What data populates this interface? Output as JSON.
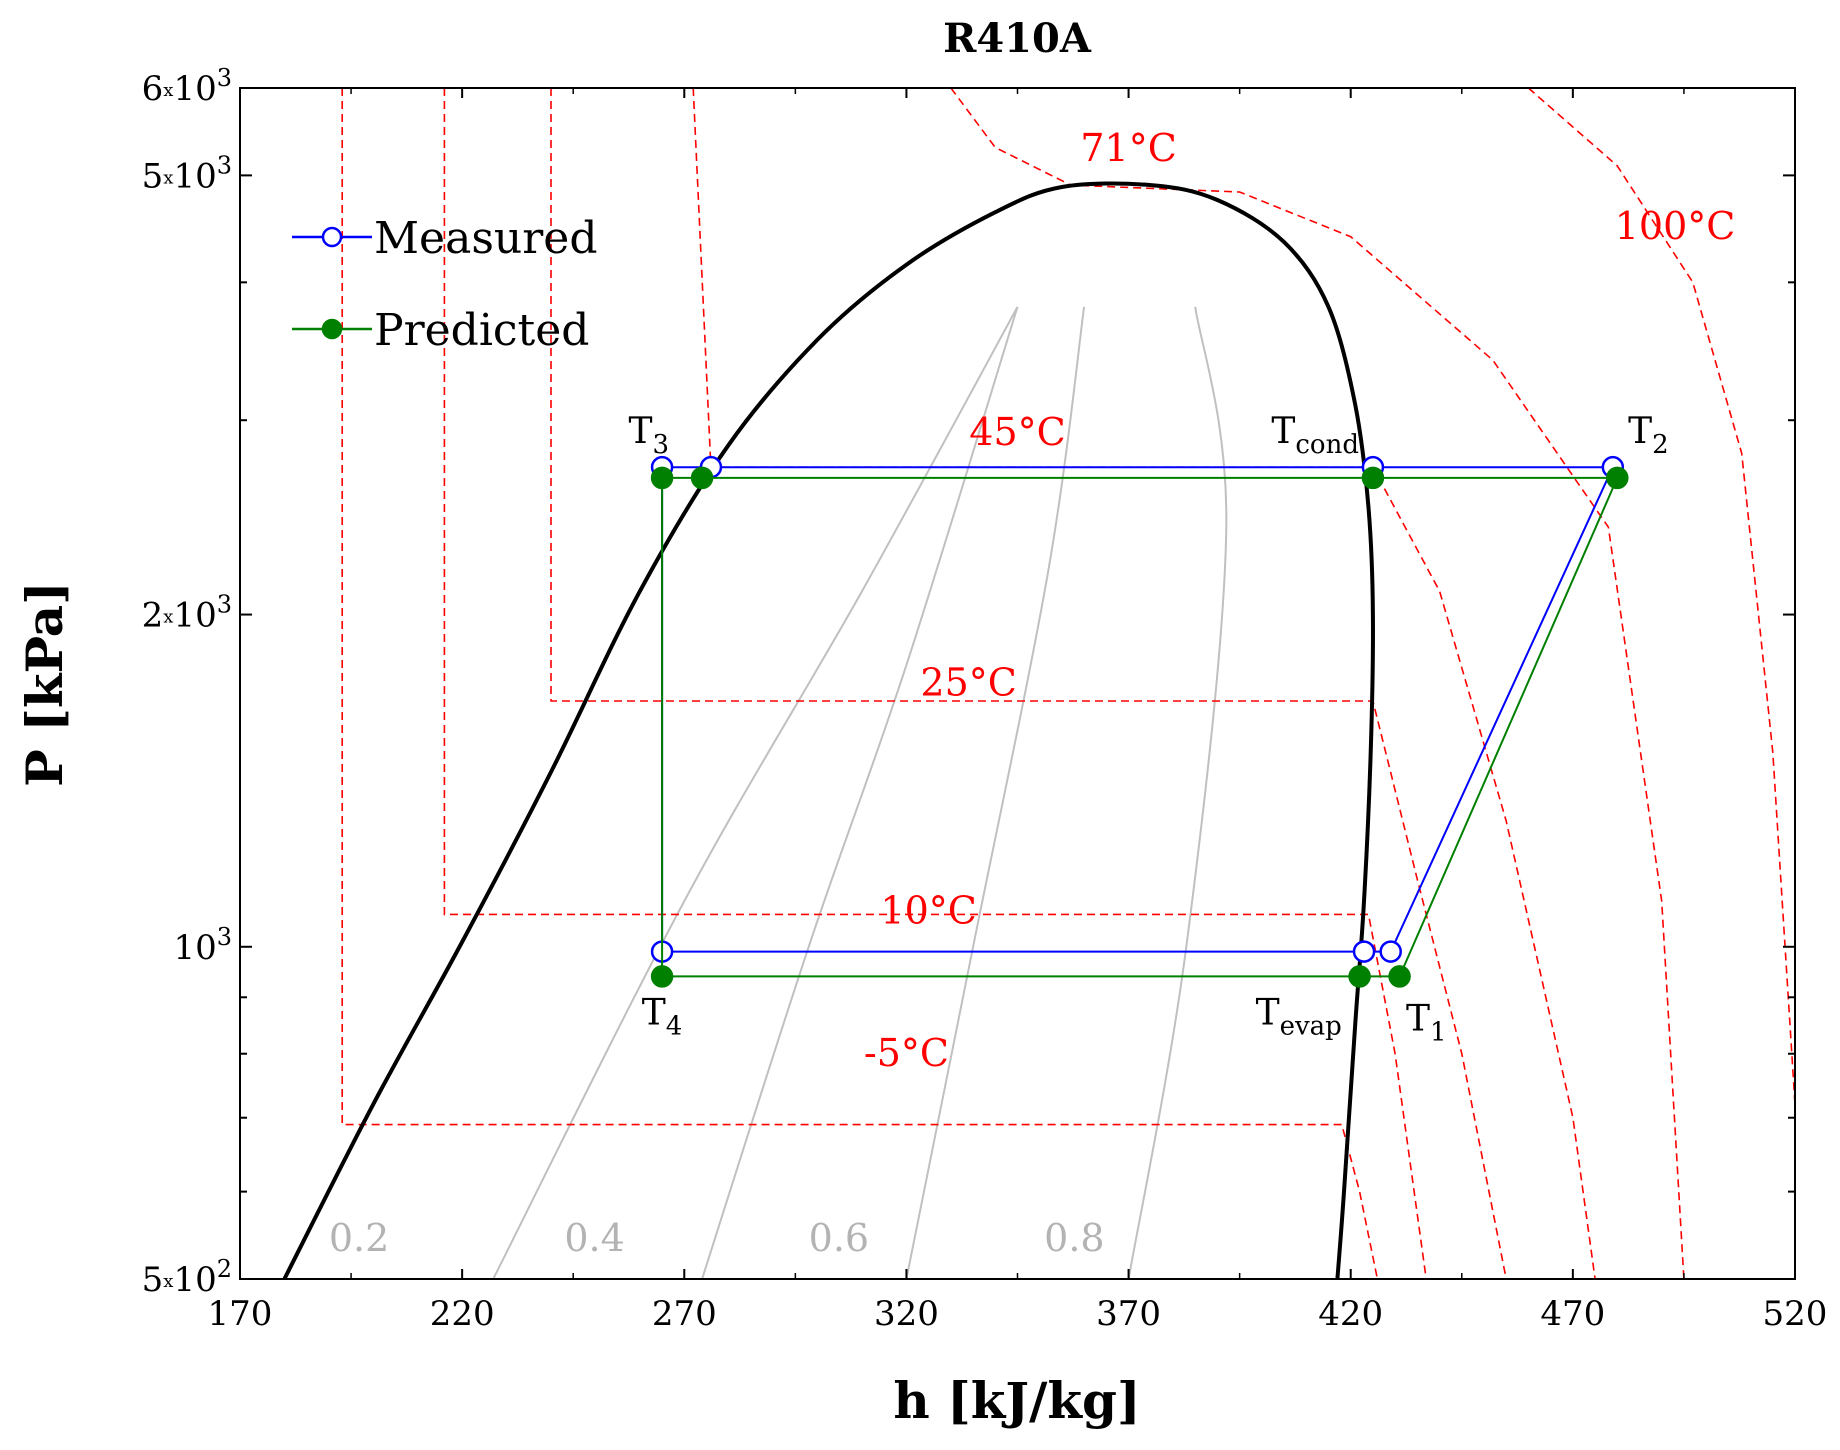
{
  "chart_data": {
    "type": "line",
    "title": "R410A",
    "xlabel": "h [kJ/kg]",
    "ylabel": "P [kPa]",
    "xlim": [
      170,
      520
    ],
    "ylim": [
      500,
      6000
    ],
    "yscale": "log",
    "xticks": [
      170,
      220,
      270,
      320,
      370,
      420,
      470,
      520
    ],
    "yticks": [
      {
        "value": 500,
        "mantissa": "5",
        "base": "10",
        "exp": "2"
      },
      {
        "value": 1000,
        "mantissa": "",
        "base": "10",
        "exp": "3"
      },
      {
        "value": 2000,
        "mantissa": "2",
        "base": "10",
        "exp": "3"
      },
      {
        "value": 5000,
        "mantissa": "5",
        "base": "10",
        "exp": "3"
      },
      {
        "value": 6000,
        "mantissa": "6",
        "base": "10",
        "exp": "3"
      }
    ],
    "legend": {
      "position": "top-left",
      "entries": [
        "Measured",
        "Predicted"
      ]
    },
    "series": [
      {
        "name": "Measured",
        "color": "#0000ff",
        "marker": "open-circle",
        "points": [
          {
            "h": 429,
            "P": 990
          },
          {
            "h": 479,
            "P": 2720
          },
          {
            "h": 425,
            "P": 2720
          },
          {
            "h": 276,
            "P": 2720
          },
          {
            "h": 265,
            "P": 2720
          },
          {
            "h": 265,
            "P": 990
          },
          {
            "h": 423,
            "P": 990
          },
          {
            "h": 429,
            "P": 990
          }
        ]
      },
      {
        "name": "Predicted",
        "color": "#008000",
        "marker": "filled-circle",
        "points": [
          {
            "h": 431,
            "P": 940
          },
          {
            "h": 480,
            "P": 2660
          },
          {
            "h": 425,
            "P": 2660
          },
          {
            "h": 274,
            "P": 2660
          },
          {
            "h": 265,
            "P": 2660
          },
          {
            "h": 265,
            "P": 940
          },
          {
            "h": 422,
            "P": 940
          },
          {
            "h": 431,
            "P": 940
          }
        ]
      }
    ],
    "saturation_dome": {
      "color": "#000000",
      "points": [
        {
          "h": 180,
          "P": 500
        },
        {
          "h": 200,
          "P": 720
        },
        {
          "h": 220,
          "P": 1010
        },
        {
          "h": 240,
          "P": 1440
        },
        {
          "h": 260,
          "P": 2100
        },
        {
          "h": 280,
          "P": 2850
        },
        {
          "h": 300,
          "P": 3550
        },
        {
          "h": 320,
          "P": 4150
        },
        {
          "h": 340,
          "P": 4630
        },
        {
          "h": 355,
          "P": 4880
        },
        {
          "h": 375,
          "P": 4900
        },
        {
          "h": 390,
          "P": 4750
        },
        {
          "h": 405,
          "P": 4350
        },
        {
          "h": 415,
          "P": 3800
        },
        {
          "h": 421,
          "P": 3100
        },
        {
          "h": 424,
          "P": 2500
        },
        {
          "h": 425,
          "P": 2000
        },
        {
          "h": 424.5,
          "P": 1500
        },
        {
          "h": 423,
          "P": 1100
        },
        {
          "h": 421,
          "P": 850
        },
        {
          "h": 418.5,
          "P": 600
        },
        {
          "h": 417,
          "P": 500
        }
      ]
    },
    "quality_lines": [
      {
        "label": "0.2",
        "points": [
          {
            "h": 227,
            "P": 500
          },
          {
            "h": 270,
            "P": 1100
          },
          {
            "h": 310,
            "P": 2100
          },
          {
            "h": 345,
            "P": 3800
          }
        ]
      },
      {
        "label": "0.4",
        "points": [
          {
            "h": 274,
            "P": 500
          },
          {
            "h": 298,
            "P": 1000
          },
          {
            "h": 320,
            "P": 1800
          },
          {
            "h": 345,
            "P": 3800
          }
        ]
      },
      {
        "label": "0.6",
        "points": [
          {
            "h": 320,
            "P": 500
          },
          {
            "h": 335,
            "P": 1000
          },
          {
            "h": 352,
            "P": 2200
          },
          {
            "h": 360,
            "P": 3800
          }
        ]
      },
      {
        "label": "0.8",
        "points": [
          {
            "h": 370,
            "P": 500
          },
          {
            "h": 383,
            "P": 1000
          },
          {
            "h": 392,
            "P": 2400
          },
          {
            "h": 385,
            "P": 3800
          }
        ]
      }
    ],
    "quality_label_h": [
      190,
      243,
      298,
      351
    ],
    "quality_label_p": 530,
    "isotherms": [
      {
        "label": "-5°C",
        "label_pos": {
          "h": 320,
          "P": 780
        },
        "points": [
          {
            "h": 193,
            "P": 6000
          },
          {
            "h": 193,
            "P": 690
          },
          {
            "h": 418,
            "P": 690
          },
          {
            "h": 422,
            "P": 600
          },
          {
            "h": 426,
            "P": 500
          }
        ]
      },
      {
        "label": "10°C",
        "label_pos": {
          "h": 325,
          "P": 1050
        },
        "points": [
          {
            "h": 216,
            "P": 6000
          },
          {
            "h": 216,
            "P": 1070
          },
          {
            "h": 424,
            "P": 1070
          },
          {
            "h": 430,
            "P": 800
          },
          {
            "h": 437,
            "P": 500
          }
        ]
      },
      {
        "label": "25°C",
        "label_pos": {
          "h": 334,
          "P": 1690
        },
        "points": [
          {
            "h": 240,
            "P": 6000
          },
          {
            "h": 240,
            "P": 1670
          },
          {
            "h": 425,
            "P": 1670
          },
          {
            "h": 435,
            "P": 1150
          },
          {
            "h": 445,
            "P": 800
          },
          {
            "h": 455,
            "P": 500
          }
        ]
      },
      {
        "label": "45°C",
        "label_pos": {
          "h": 345,
          "P": 2850
        },
        "points": [
          {
            "h": 272,
            "P": 6000
          },
          {
            "h": 276,
            "P": 2720
          },
          {
            "h": 425,
            "P": 2720
          },
          {
            "h": 440,
            "P": 2100
          },
          {
            "h": 455,
            "P": 1300
          },
          {
            "h": 470,
            "P": 700
          },
          {
            "h": 475,
            "P": 500
          }
        ]
      },
      {
        "label": "71°C",
        "label_pos": {
          "h": 370,
          "P": 5150
        },
        "points": [
          {
            "h": 330,
            "P": 6000
          },
          {
            "h": 340,
            "P": 5300
          },
          {
            "h": 357,
            "P": 4900
          },
          {
            "h": 395,
            "P": 4830
          },
          {
            "h": 420,
            "P": 4400
          },
          {
            "h": 452,
            "P": 3400
          },
          {
            "h": 478,
            "P": 2400
          },
          {
            "h": 490,
            "P": 1100
          },
          {
            "h": 495,
            "P": 500
          }
        ]
      },
      {
        "label": "100°C",
        "label_pos": {
          "h": 493,
          "P": 4380
        },
        "points": [
          {
            "h": 460,
            "P": 6000
          },
          {
            "h": 480,
            "P": 5100
          },
          {
            "h": 497,
            "P": 4000
          },
          {
            "h": 508,
            "P": 2800
          },
          {
            "h": 515,
            "P": 1500
          },
          {
            "h": 520,
            "P": 720
          }
        ]
      }
    ],
    "state_points": [
      {
        "main": "T",
        "sub": "3",
        "h": 262,
        "P": 2860,
        "anchor": "middle"
      },
      {
        "main": "T",
        "sub": "cond",
        "h": 412,
        "P": 2860,
        "anchor": "middle"
      },
      {
        "main": "T",
        "sub": "2",
        "h": 487,
        "P": 2860,
        "anchor": "middle"
      },
      {
        "main": "T",
        "sub": "4",
        "h": 265,
        "P": 850,
        "anchor": "middle"
      },
      {
        "main": "T",
        "sub": "evap",
        "h": 418,
        "P": 850,
        "anchor": "end"
      },
      {
        "main": "T",
        "sub": "1",
        "h": 437,
        "P": 840,
        "anchor": "middle"
      }
    ]
  }
}
